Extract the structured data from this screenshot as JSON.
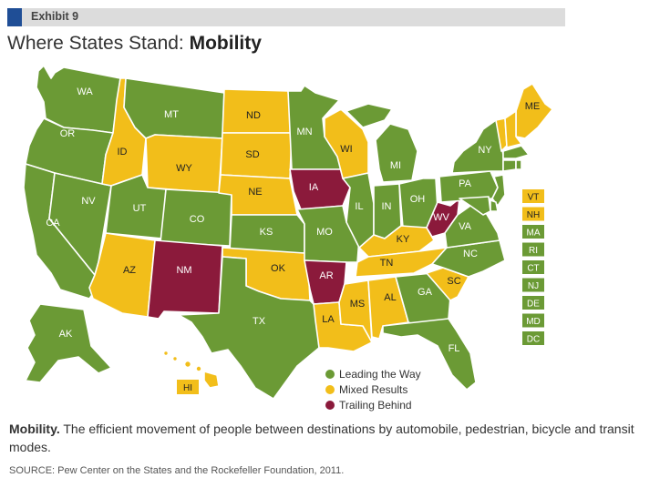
{
  "exhibit": "Exhibit 9",
  "title": {
    "prefix": "Where States Stand: ",
    "emphasis": "Mobility"
  },
  "colors": {
    "leading": "#6b9a35",
    "mixed": "#f2be1a",
    "trailing": "#8b1a3b",
    "exhibit_square": "#1f4e96",
    "exhibit_bar": "#dcdcdc"
  },
  "legend": [
    {
      "label": "Leading the Way",
      "category": "leading"
    },
    {
      "label": "Mixed Results",
      "category": "mixed"
    },
    {
      "label": "Trailing Behind",
      "category": "trailing"
    }
  ],
  "states": {
    "WA": "leading",
    "OR": "leading",
    "CA": "leading",
    "NV": "leading",
    "ID": "mixed",
    "MT": "leading",
    "WY": "mixed",
    "UT": "leading",
    "AZ": "mixed",
    "CO": "leading",
    "NM": "trailing",
    "ND": "mixed",
    "SD": "mixed",
    "NE": "mixed",
    "KS": "leading",
    "OK": "mixed",
    "TX": "leading",
    "MN": "leading",
    "IA": "trailing",
    "MO": "leading",
    "AR": "trailing",
    "LA": "mixed",
    "WI": "mixed",
    "IL": "leading",
    "MS": "mixed",
    "MI": "leading",
    "IN": "leading",
    "KY": "mixed",
    "TN": "mixed",
    "AL": "mixed",
    "OH": "leading",
    "WV": "trailing",
    "GA": "leading",
    "FL": "leading",
    "SC": "mixed",
    "NC": "leading",
    "VA": "leading",
    "PA": "leading",
    "NY": "leading",
    "ME": "mixed",
    "AK": "leading",
    "HI": "mixed",
    "VT": "mixed",
    "NH": "mixed",
    "MA": "leading",
    "RI": "leading",
    "CT": "leading",
    "NJ": "leading",
    "DE": "leading",
    "MD": "leading",
    "DC": "leading"
  },
  "small_states": [
    "VT",
    "NH",
    "MA",
    "RI",
    "CT",
    "NJ",
    "DE",
    "MD",
    "DC"
  ],
  "description": {
    "term": "Mobility.",
    "text": " The efficient movement of people between destinations by automobile, pedestrian, bicycle and transit modes."
  },
  "source": "SOURCE: Pew Center on the States and the Rockefeller Foundation, 2011."
}
